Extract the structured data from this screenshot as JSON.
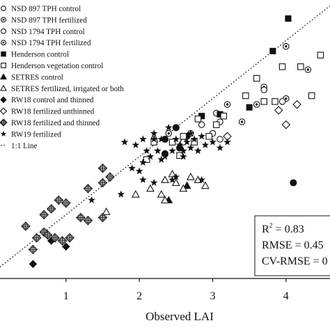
{
  "chart_data": {
    "type": "scatter",
    "title": "",
    "xlabel": "Observed LAI",
    "ylabel": "",
    "xlim": [
      0.1,
      4.6
    ],
    "ylim": [
      -0.1,
      4.7
    ],
    "x_ticks": [
      {
        "v": 1,
        "label": "1"
      },
      {
        "v": 2,
        "label": "2"
      },
      {
        "v": 3,
        "label": "3"
      },
      {
        "v": 4,
        "label": "4"
      }
    ],
    "grid": false,
    "legend_placement": "top-left",
    "legend": [
      {
        "label": "NSD 897 TPH control",
        "marker": "circle-open"
      },
      {
        "label": "NSD 897 TPH fertilized",
        "marker": "circle-dot"
      },
      {
        "label": "NSD 1794 TPH control",
        "marker": "circle-open"
      },
      {
        "label": "NSD 1794 TPH fertilized",
        "marker": "circle-dot"
      },
      {
        "label": "Henderson control",
        "marker": "square-filled"
      },
      {
        "label": "Henderson vegetation control",
        "marker": "square-open"
      },
      {
        "label": "SETRES control",
        "marker": "triangle-filled"
      },
      {
        "label": "SETRES fertilized, irrigated or both",
        "marker": "triangle-open"
      },
      {
        "label": "RW18 control and thinned",
        "marker": "diamond-filled"
      },
      {
        "label": "RW18 fertilized unthinned",
        "marker": "diamond-open"
      },
      {
        "label": "RW18 fertilized and thinned",
        "marker": "diamond-cross"
      },
      {
        "label": "RW19 fertilized",
        "marker": "star-filled"
      },
      {
        "label": "1:1 Line",
        "marker": "dotted-line"
      }
    ],
    "stats": {
      "r2_base": "R",
      "r2_exp": "2",
      "r2_value": " = 0.83",
      "rmse": "RMSE = 0.45",
      "cv_rmse": "CV-RMSE = 0"
    },
    "reference_line": {
      "name": "1:1 Line",
      "from": [
        0.1,
        0.1
      ],
      "to": [
        4.6,
        4.6
      ]
    },
    "series": [
      {
        "marker": "circle-dot",
        "points": [
          [
            4.0,
            3.9
          ],
          [
            4.3,
            3.5
          ],
          [
            3.7,
            3.2
          ],
          [
            4.0,
            3.0
          ],
          [
            2.7,
            2.4
          ],
          [
            2.4,
            2.4
          ],
          [
            3.2,
            2.9
          ],
          [
            3.4,
            2.6
          ],
          [
            3.6,
            2.9
          ],
          [
            2.2,
            2.3
          ]
        ]
      },
      {
        "marker": "circle-filled",
        "points": [
          [
            2.35,
            2.3
          ],
          [
            2.55,
            2.15
          ],
          [
            2.65,
            2.35
          ],
          [
            2.5,
            2.5
          ],
          [
            4.1,
            1.55
          ],
          [
            2.35,
            2.05
          ]
        ]
      },
      {
        "marker": "circle-open",
        "points": [
          [
            2.85,
            2.55
          ],
          [
            3.1,
            2.6
          ],
          [
            3.7,
            3.15
          ],
          [
            3.05,
            2.75
          ],
          [
            3.95,
            2.95
          ],
          [
            2.6,
            2.25
          ],
          [
            3.1,
            2.3
          ],
          [
            3.0,
            2.4
          ]
        ]
      },
      {
        "marker": "square-filled",
        "points": [
          [
            4.03,
            4.38
          ],
          [
            3.82,
            3.82
          ],
          [
            3.1,
            2.73
          ],
          [
            2.85,
            2.7
          ],
          [
            3.5,
            2.85
          ]
        ]
      },
      {
        "marker": "square-open",
        "points": [
          [
            4.47,
            3.75
          ],
          [
            4.2,
            3.55
          ],
          [
            3.95,
            3.55
          ],
          [
            3.6,
            3.35
          ],
          [
            4.35,
            3.05
          ],
          [
            3.85,
            2.95
          ],
          [
            3.7,
            2.95
          ],
          [
            3.45,
            3.05
          ],
          [
            3.15,
            2.7
          ],
          [
            2.8,
            2.65
          ],
          [
            2.95,
            2.35
          ],
          [
            2.75,
            2.25
          ],
          [
            2.6,
            2.35
          ],
          [
            2.45,
            2.25
          ],
          [
            2.2,
            2.25
          ],
          [
            2.1,
            1.95
          ],
          [
            2.55,
            2.02
          ],
          [
            3.05,
            2.55
          ]
        ]
      },
      {
        "marker": "triangle-filled",
        "points": [
          [
            2.4,
            1.25
          ],
          [
            2.65,
            1.5
          ]
        ]
      },
      {
        "marker": "triangle-open",
        "points": [
          [
            1.55,
            1.05
          ],
          [
            1.95,
            1.35
          ],
          [
            2.15,
            1.45
          ],
          [
            2.3,
            1.35
          ],
          [
            2.35,
            1.25
          ],
          [
            2.5,
            1.55
          ],
          [
            2.6,
            1.45
          ],
          [
            2.7,
            1.65
          ],
          [
            2.8,
            1.6
          ],
          [
            2.9,
            1.5
          ],
          [
            2.45,
            1.7
          ],
          [
            2.35,
            1.6
          ]
        ]
      },
      {
        "marker": "diamond-filled",
        "points": [
          [
            0.55,
            0.15
          ],
          [
            1.0,
            0.45
          ],
          [
            0.8,
            0.55
          ]
        ]
      },
      {
        "marker": "diamond-open",
        "points": [
          [
            3.9,
            2.8
          ],
          [
            3.2,
            2.35
          ],
          [
            4.0,
            2.55
          ],
          [
            4.15,
            2.9
          ]
        ]
      },
      {
        "marker": "diamond-cross",
        "points": [
          [
            0.55,
            0.4
          ],
          [
            0.45,
            0.8
          ],
          [
            0.6,
            0.6
          ],
          [
            0.7,
            0.7
          ],
          [
            0.75,
            0.65
          ],
          [
            0.85,
            0.6
          ],
          [
            0.95,
            0.55
          ],
          [
            1.05,
            0.6
          ],
          [
            0.7,
            1.0
          ],
          [
            0.8,
            1.1
          ],
          [
            1.0,
            1.2
          ],
          [
            0.9,
            1.25
          ],
          [
            1.3,
            1.45
          ],
          [
            1.5,
            1.55
          ],
          [
            1.3,
            0.9
          ],
          [
            1.2,
            0.95
          ],
          [
            1.5,
            0.95
          ],
          [
            1.5,
            1.8
          ],
          [
            1.6,
            1.65
          ]
        ]
      },
      {
        "marker": "star-filled",
        "points": [
          [
            1.9,
            1.8
          ],
          [
            2.05,
            1.9
          ],
          [
            2.15,
            2.0
          ],
          [
            2.25,
            2.1
          ],
          [
            2.35,
            2.0
          ],
          [
            2.45,
            2.1
          ],
          [
            2.55,
            2.2
          ],
          [
            2.65,
            2.25
          ],
          [
            2.75,
            2.3
          ],
          [
            2.85,
            2.35
          ],
          [
            2.5,
            2.3
          ],
          [
            2.6,
            2.0
          ],
          [
            2.1,
            2.1
          ],
          [
            2.3,
            2.3
          ],
          [
            1.95,
            2.2
          ],
          [
            2.05,
            2.3
          ],
          [
            2.2,
            2.4
          ],
          [
            2.4,
            2.5
          ],
          [
            2.7,
            2.4
          ],
          [
            2.9,
            2.2
          ],
          [
            3.0,
            2.25
          ],
          [
            3.1,
            2.15
          ],
          [
            3.2,
            2.25
          ],
          [
            2.8,
            2.1
          ],
          [
            2.3,
            1.95
          ],
          [
            2.7,
            2.15
          ],
          [
            2.6,
            2.1
          ],
          [
            2.0,
            1.75
          ],
          [
            2.05,
            1.6
          ],
          [
            2.45,
            1.6
          ],
          [
            2.5,
            1.65
          ],
          [
            1.35,
            1.25
          ],
          [
            1.75,
            1.35
          ],
          [
            2.2,
            1.55
          ],
          [
            2.85,
            1.6
          ],
          [
            2.2,
            2.3
          ],
          [
            1.8,
            2.25
          ]
        ]
      }
    ]
  }
}
